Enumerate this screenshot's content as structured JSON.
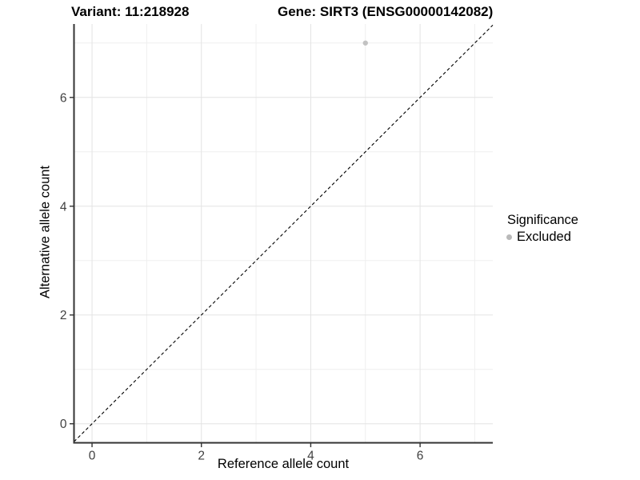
{
  "titles": {
    "variant": "Variant: 11:218928",
    "gene": "Gene: SIRT3 (ENSG00000142082)"
  },
  "chart_data": {
    "type": "scatter",
    "xlabel": "Reference allele count",
    "ylabel": "Alternative allele count",
    "xlim": [
      -0.33,
      7.33
    ],
    "ylim": [
      -0.35,
      7.35
    ],
    "x_major_ticks": [
      0,
      2,
      4,
      6
    ],
    "y_major_ticks": [
      0,
      2,
      4,
      6
    ],
    "x_minor_ticks": [
      1,
      3,
      5,
      7
    ],
    "y_minor_ticks": [
      1,
      3,
      5,
      7
    ],
    "grid": true,
    "points": [
      {
        "x": 5,
        "y": 7,
        "series": "Excluded"
      }
    ],
    "abline": {
      "slope": 1,
      "intercept": 0,
      "style": "dashed",
      "color": "#000000"
    },
    "legend": {
      "title": "Significance",
      "position": "right",
      "items": [
        {
          "label": "Excluded",
          "color": "#b9b9b9"
        }
      ]
    },
    "colors": {
      "point": "#c2c2c2",
      "grid_major": "#e3e3e3",
      "grid_minor": "#efefef",
      "axis_line": "#333333",
      "tick_text": "#404040"
    }
  }
}
